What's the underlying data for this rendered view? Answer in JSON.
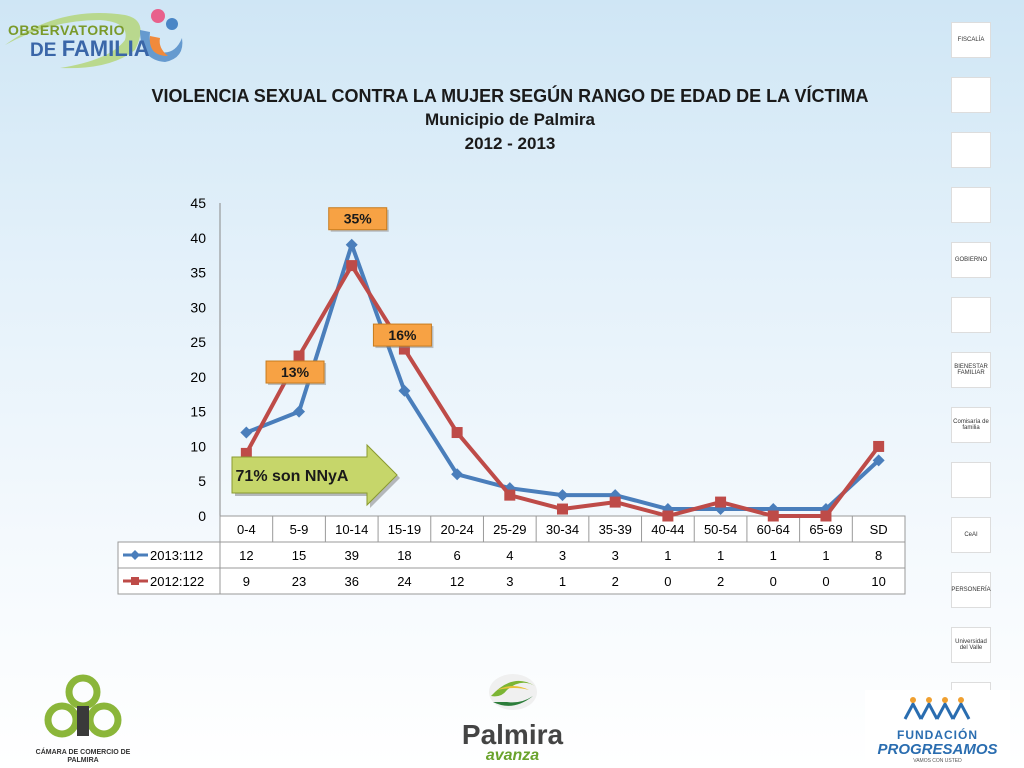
{
  "header": {
    "logo_line1": "OBSERVATORIO",
    "logo_line2_a": "DE ",
    "logo_line2_b": "FAMILIA"
  },
  "title": {
    "line1": "VIOLENCIA SEXUAL CONTRA LA MUJER SEGÚN RANGO DE EDAD DE  LA  VÍCTIMA",
    "line2": "Municipio de Palmira",
    "line3": "2012 - 2013"
  },
  "chart_data": {
    "type": "line",
    "categories": [
      "0-4",
      "5-9",
      "10-14",
      "15-19",
      "20-24",
      "25-29",
      "30-34",
      "35-39",
      "40-44",
      "50-54",
      "60-64",
      "65-69",
      "SD"
    ],
    "ylim": [
      0,
      45
    ],
    "yticks": [
      0,
      5,
      10,
      15,
      20,
      25,
      30,
      35,
      40,
      45
    ],
    "series": [
      {
        "name": "2013:112",
        "color": "#4a7ebb",
        "marker": "diamond",
        "values": [
          12,
          15,
          39,
          18,
          6,
          4,
          3,
          3,
          1,
          1,
          1,
          1,
          8
        ]
      },
      {
        "name": "2012:122",
        "color": "#be4b48",
        "marker": "square",
        "values": [
          9,
          23,
          36,
          24,
          12,
          3,
          1,
          2,
          0,
          2,
          0,
          0,
          10
        ]
      }
    ],
    "annotations": [
      {
        "text": "13%",
        "category": "5-9"
      },
      {
        "text": "35%",
        "category": "10-14"
      },
      {
        "text": "16%",
        "category": "15-19"
      }
    ],
    "arrow_label": "71% son NNyA",
    "grid": false,
    "legend": "data-table"
  },
  "right_logos": [
    {
      "name": "fiscalia-logo",
      "text": "FISCALÍA"
    },
    {
      "name": "policia-logo",
      "text": ""
    },
    {
      "name": "institucion-logo",
      "text": ""
    },
    {
      "name": "medicina-legal-logo",
      "text": ""
    },
    {
      "name": "gobierno-logo",
      "text": "GOBIERNO"
    },
    {
      "name": "salud-logo",
      "text": ""
    },
    {
      "name": "bienestar-familiar-logo",
      "text": "BIENESTAR FAMILIAR"
    },
    {
      "name": "comisaria-familia-logo",
      "text": "Comisaría de familia"
    },
    {
      "name": "casa-justicia-logo",
      "text": ""
    },
    {
      "name": "ceai-logo",
      "text": "CeAI"
    },
    {
      "name": "personeria-logo",
      "text": "PERSONERÍA"
    },
    {
      "name": "univalle-logo",
      "text": "Universidad del Valle"
    },
    {
      "name": "upb-logo",
      "text": "Universidad Pontificia Bolivariana"
    }
  ],
  "footer": {
    "camara_label": "CÁMARA DE COMERCIO DE PALMIRA",
    "palmira": "Palmira",
    "avanza": "avanza",
    "fundacion": "FUNDACIÓN",
    "progresamos": "PROGRESAMOS",
    "vamos": "VAMOS CON USTED"
  },
  "colors": {
    "series_2013": "#4a7ebb",
    "series_2012": "#be4b48",
    "callout_fill": "#f7a244",
    "arrow_fill": "#c6d66a"
  }
}
